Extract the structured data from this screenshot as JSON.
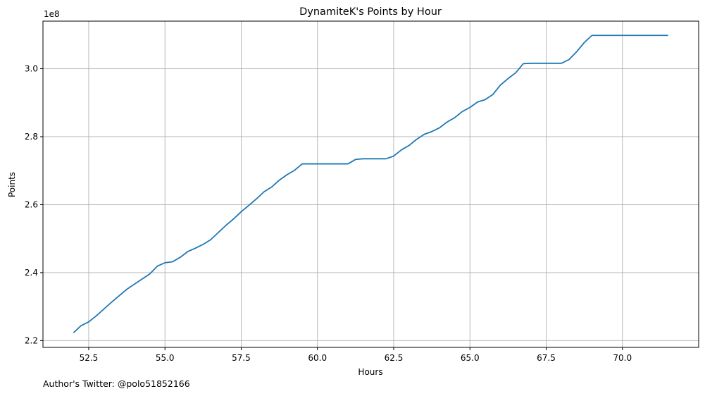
{
  "footer_text": "Author's Twitter: @polo51852166",
  "chart_data": {
    "type": "line",
    "title": "DynamiteK's Points by Hour",
    "xlabel": "Hours",
    "ylabel": "Points",
    "y_offset_label": "1e8",
    "xlim": [
      51.0,
      72.5
    ],
    "ylim": [
      2.18,
      3.14
    ],
    "x_ticks": [
      52.5,
      55.0,
      57.5,
      60.0,
      62.5,
      65.0,
      67.5,
      70.0
    ],
    "x_tick_labels": [
      "52.5",
      "55.0",
      "57.5",
      "60.0",
      "62.5",
      "65.0",
      "67.5",
      "70.0"
    ],
    "y_ticks": [
      2.2,
      2.4,
      2.6,
      2.8,
      3.0
    ],
    "y_tick_labels": [
      "2.2",
      "2.4",
      "2.6",
      "2.8",
      "3.0"
    ],
    "grid": true,
    "line_color": "#1f77b4",
    "series": [
      {
        "x": [
          52.0,
          52.25,
          52.5,
          52.75,
          53.0,
          53.25,
          53.5,
          53.75,
          54.0,
          54.25,
          54.5,
          54.75,
          55.0,
          55.25,
          55.5,
          55.75,
          56.0,
          56.25,
          56.5,
          56.75,
          57.0,
          57.25,
          57.5,
          57.75,
          58.0,
          58.25,
          58.5,
          58.75,
          59.0,
          59.25,
          59.5,
          59.75,
          60.0,
          60.25,
          60.5,
          60.75,
          61.0,
          61.25,
          61.5,
          61.75,
          62.0,
          62.25,
          62.5,
          62.75,
          63.0,
          63.25,
          63.5,
          63.75,
          64.0,
          64.25,
          64.5,
          64.75,
          65.0,
          65.25,
          65.5,
          65.75,
          66.0,
          66.25,
          66.5,
          66.75,
          67.0,
          67.25,
          67.5,
          67.75,
          68.0,
          68.25,
          68.5,
          68.75,
          69.0,
          69.25,
          69.5,
          69.75,
          70.0,
          70.25,
          70.5,
          70.75,
          71.0,
          71.25,
          71.5
        ],
        "values": [
          2.223,
          2.244,
          2.255,
          2.273,
          2.293,
          2.313,
          2.332,
          2.351,
          2.366,
          2.381,
          2.396,
          2.419,
          2.429,
          2.432,
          2.445,
          2.462,
          2.472,
          2.483,
          2.497,
          2.518,
          2.539,
          2.558,
          2.579,
          2.598,
          2.617,
          2.638,
          2.652,
          2.672,
          2.688,
          2.701,
          2.72,
          2.72,
          2.72,
          2.72,
          2.72,
          2.72,
          2.72,
          2.733,
          2.735,
          2.735,
          2.735,
          2.735,
          2.743,
          2.761,
          2.774,
          2.792,
          2.807,
          2.815,
          2.826,
          2.843,
          2.856,
          2.874,
          2.886,
          2.902,
          2.909,
          2.924,
          2.952,
          2.971,
          2.988,
          3.015,
          3.016,
          3.016,
          3.016,
          3.016,
          3.016,
          3.027,
          3.05,
          3.077,
          3.098,
          3.098,
          3.098,
          3.098,
          3.098,
          3.098,
          3.098,
          3.098,
          3.098,
          3.098,
          3.098
        ]
      }
    ]
  }
}
